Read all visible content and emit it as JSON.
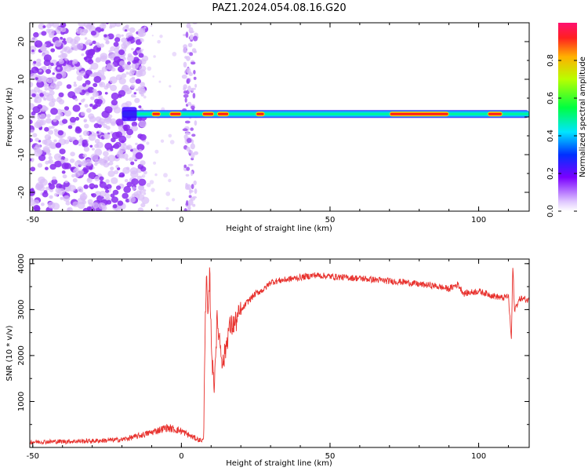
{
  "title": "PAZ1.2024.054.08.16.G20",
  "chart_data": [
    {
      "type": "heatmap",
      "xlabel": "Height of straight line (km)",
      "ylabel": "Frequency (Hz)",
      "xlim": [
        -51,
        117
      ],
      "ylim": [
        -25,
        25
      ],
      "xticks": [
        -50,
        0,
        50,
        100
      ],
      "yticks": [
        -20,
        -10,
        0,
        10,
        20
      ],
      "colorbar": {
        "label": "Normalized spectral amplitude",
        "range": [
          0,
          1
        ],
        "ticks": [
          "0.0",
          "0.2",
          "0.4",
          "0.6",
          "0.8"
        ]
      },
      "features": {
        "noise_region_km": [
          -51,
          -16
        ],
        "noise_band_km": [
          0,
          5
        ],
        "signal_start_km": -20,
        "signal_frequency_hz": 0.8,
        "peak_segments_km": [
          [
            -10,
            -7
          ],
          [
            -4,
            0
          ],
          [
            7,
            11
          ],
          [
            12,
            16
          ],
          [
            25,
            28
          ],
          [
            70,
            90
          ],
          [
            103,
            108
          ]
        ]
      }
    },
    {
      "type": "line",
      "xlabel": "Height of straight line (km)",
      "ylabel": "SNR (10 * v/v)",
      "xlim": [
        -51,
        117
      ],
      "ylim": [
        0,
        4100
      ],
      "xticks": [
        -50,
        0,
        50,
        100
      ],
      "yticks": [
        1000,
        2000,
        3000,
        4000
      ],
      "color": "#e8322e",
      "series": [
        {
          "x": [
            -51,
            -40,
            -30,
            -20,
            -15,
            -10,
            -5,
            0,
            3,
            6,
            7.5,
            8,
            8.5,
            9,
            9.5,
            10,
            10.5,
            11,
            12,
            13,
            14,
            16,
            18,
            20,
            22,
            25,
            28,
            30,
            35,
            40,
            45,
            50,
            55,
            60,
            65,
            70,
            75,
            80,
            85,
            90,
            93,
            95,
            100,
            105,
            108,
            110,
            111,
            111.5,
            112,
            114,
            117
          ],
          "y": [
            120,
            130,
            140,
            170,
            240,
            330,
            430,
            360,
            250,
            160,
            160,
            2950,
            3600,
            2700,
            3800,
            2500,
            1700,
            1350,
            2750,
            2300,
            1800,
            2600,
            2700,
            2950,
            3150,
            3350,
            3450,
            3600,
            3650,
            3700,
            3750,
            3720,
            3700,
            3680,
            3650,
            3620,
            3600,
            3550,
            3520,
            3450,
            3550,
            3350,
            3400,
            3300,
            3250,
            3300,
            2350,
            4000,
            3000,
            3250,
            3200
          ]
        }
      ]
    }
  ]
}
